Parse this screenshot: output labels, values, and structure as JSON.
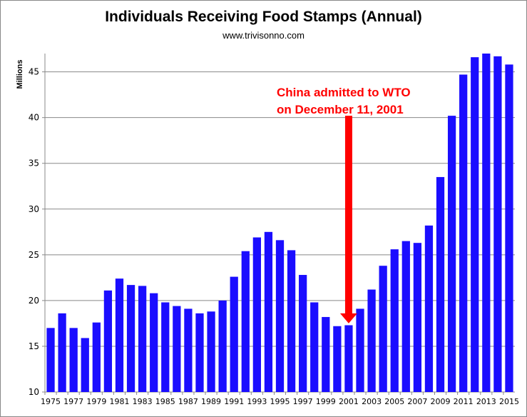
{
  "chart_data": {
    "type": "bar",
    "title": "Individuals Receiving Food Stamps (Annual)",
    "subtitle": "www.trivisonno.com",
    "xlabel": "",
    "ylabel": "Millions",
    "ylim": [
      10,
      47
    ],
    "yticks": [
      10,
      15,
      20,
      25,
      30,
      35,
      40,
      45
    ],
    "grid": true,
    "bar_color": "#1a0dff",
    "categories": [
      "1975",
      "1976",
      "1977",
      "1978",
      "1979",
      "1980",
      "1981",
      "1982",
      "1983",
      "1984",
      "1985",
      "1986",
      "1987",
      "1988",
      "1989",
      "1990",
      "1991",
      "1992",
      "1993",
      "1994",
      "1995",
      "1996",
      "1997",
      "1998",
      "1999",
      "2000",
      "2001",
      "2002",
      "2003",
      "2004",
      "2005",
      "2006",
      "2007",
      "2008",
      "2009",
      "2010",
      "2011",
      "2012",
      "2013",
      "2014",
      "2015"
    ],
    "values": [
      17.0,
      18.6,
      17.0,
      15.9,
      17.6,
      21.1,
      22.4,
      21.7,
      21.6,
      20.8,
      19.8,
      19.4,
      19.1,
      18.6,
      18.8,
      20.0,
      22.6,
      25.4,
      26.9,
      27.5,
      26.6,
      25.5,
      22.8,
      19.8,
      18.2,
      17.2,
      17.3,
      19.1,
      21.2,
      23.8,
      25.6,
      26.5,
      26.3,
      28.2,
      33.5,
      40.2,
      44.7,
      46.6,
      47.0,
      46.7,
      45.8
    ],
    "annotation": {
      "lines": [
        "China admitted to WTO",
        "on December 11, 2001"
      ],
      "target_category": "2001",
      "arrow_from_value": 40.2,
      "arrow_to_value": 17.5,
      "color": "#ff0000"
    }
  }
}
